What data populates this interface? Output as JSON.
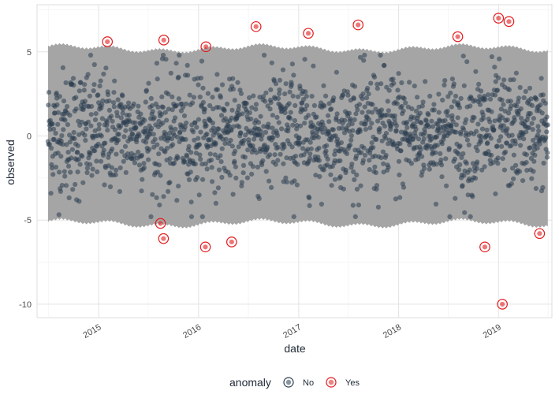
{
  "chart_data": {
    "type": "scatter",
    "xlabel": "date",
    "ylabel": "observed",
    "x_tick_labels": [
      "2015",
      "2016",
      "2017",
      "2018",
      "2019"
    ],
    "y_tick_values": [
      -10,
      -5,
      0,
      5
    ],
    "y_tick_labels": [
      "-10",
      "-5",
      "0",
      "5"
    ],
    "xlim": [
      "2014-05-21",
      "2019-07-15"
    ],
    "ylim": [
      -10.8,
      7.8
    ],
    "grid": true,
    "band": {
      "start": "2014-06-30",
      "end": "2019-06-30",
      "upper_base": 5.2,
      "lower_base": -5.2,
      "ripple": 0.15,
      "color": "#a5a5a5"
    },
    "normal_series": {
      "name": "No",
      "start": "2014-06-30",
      "end": "2019-06-30",
      "count": 1700,
      "approx_sd": 1.8,
      "color": "#2c3e50"
    },
    "anomalies": [
      {
        "date": "2015-02-02",
        "y": 5.6
      },
      {
        "date": "2015-08-27",
        "y": 5.7
      },
      {
        "date": "2016-01-28",
        "y": 5.3
      },
      {
        "date": "2016-07-29",
        "y": 6.5
      },
      {
        "date": "2017-02-05",
        "y": 6.1
      },
      {
        "date": "2017-08-06",
        "y": 6.6
      },
      {
        "date": "2018-08-05",
        "y": 5.9
      },
      {
        "date": "2019-01-01",
        "y": 7.0
      },
      {
        "date": "2019-02-08",
        "y": 6.8
      },
      {
        "date": "2015-08-15",
        "y": -5.2
      },
      {
        "date": "2015-08-26",
        "y": -6.1
      },
      {
        "date": "2016-01-26",
        "y": -6.6
      },
      {
        "date": "2016-05-01",
        "y": -6.3
      },
      {
        "date": "2018-11-12",
        "y": -6.6
      },
      {
        "date": "2019-01-15",
        "y": -10.0
      },
      {
        "date": "2019-05-31",
        "y": -5.8
      }
    ],
    "legend": {
      "title": "anomaly",
      "entries": [
        {
          "label": "No",
          "color": "#2c3e50"
        },
        {
          "label": "Yes",
          "color": "#e31a1c"
        }
      ],
      "position": "bottom"
    },
    "anomaly_color": "#e31a1c"
  }
}
